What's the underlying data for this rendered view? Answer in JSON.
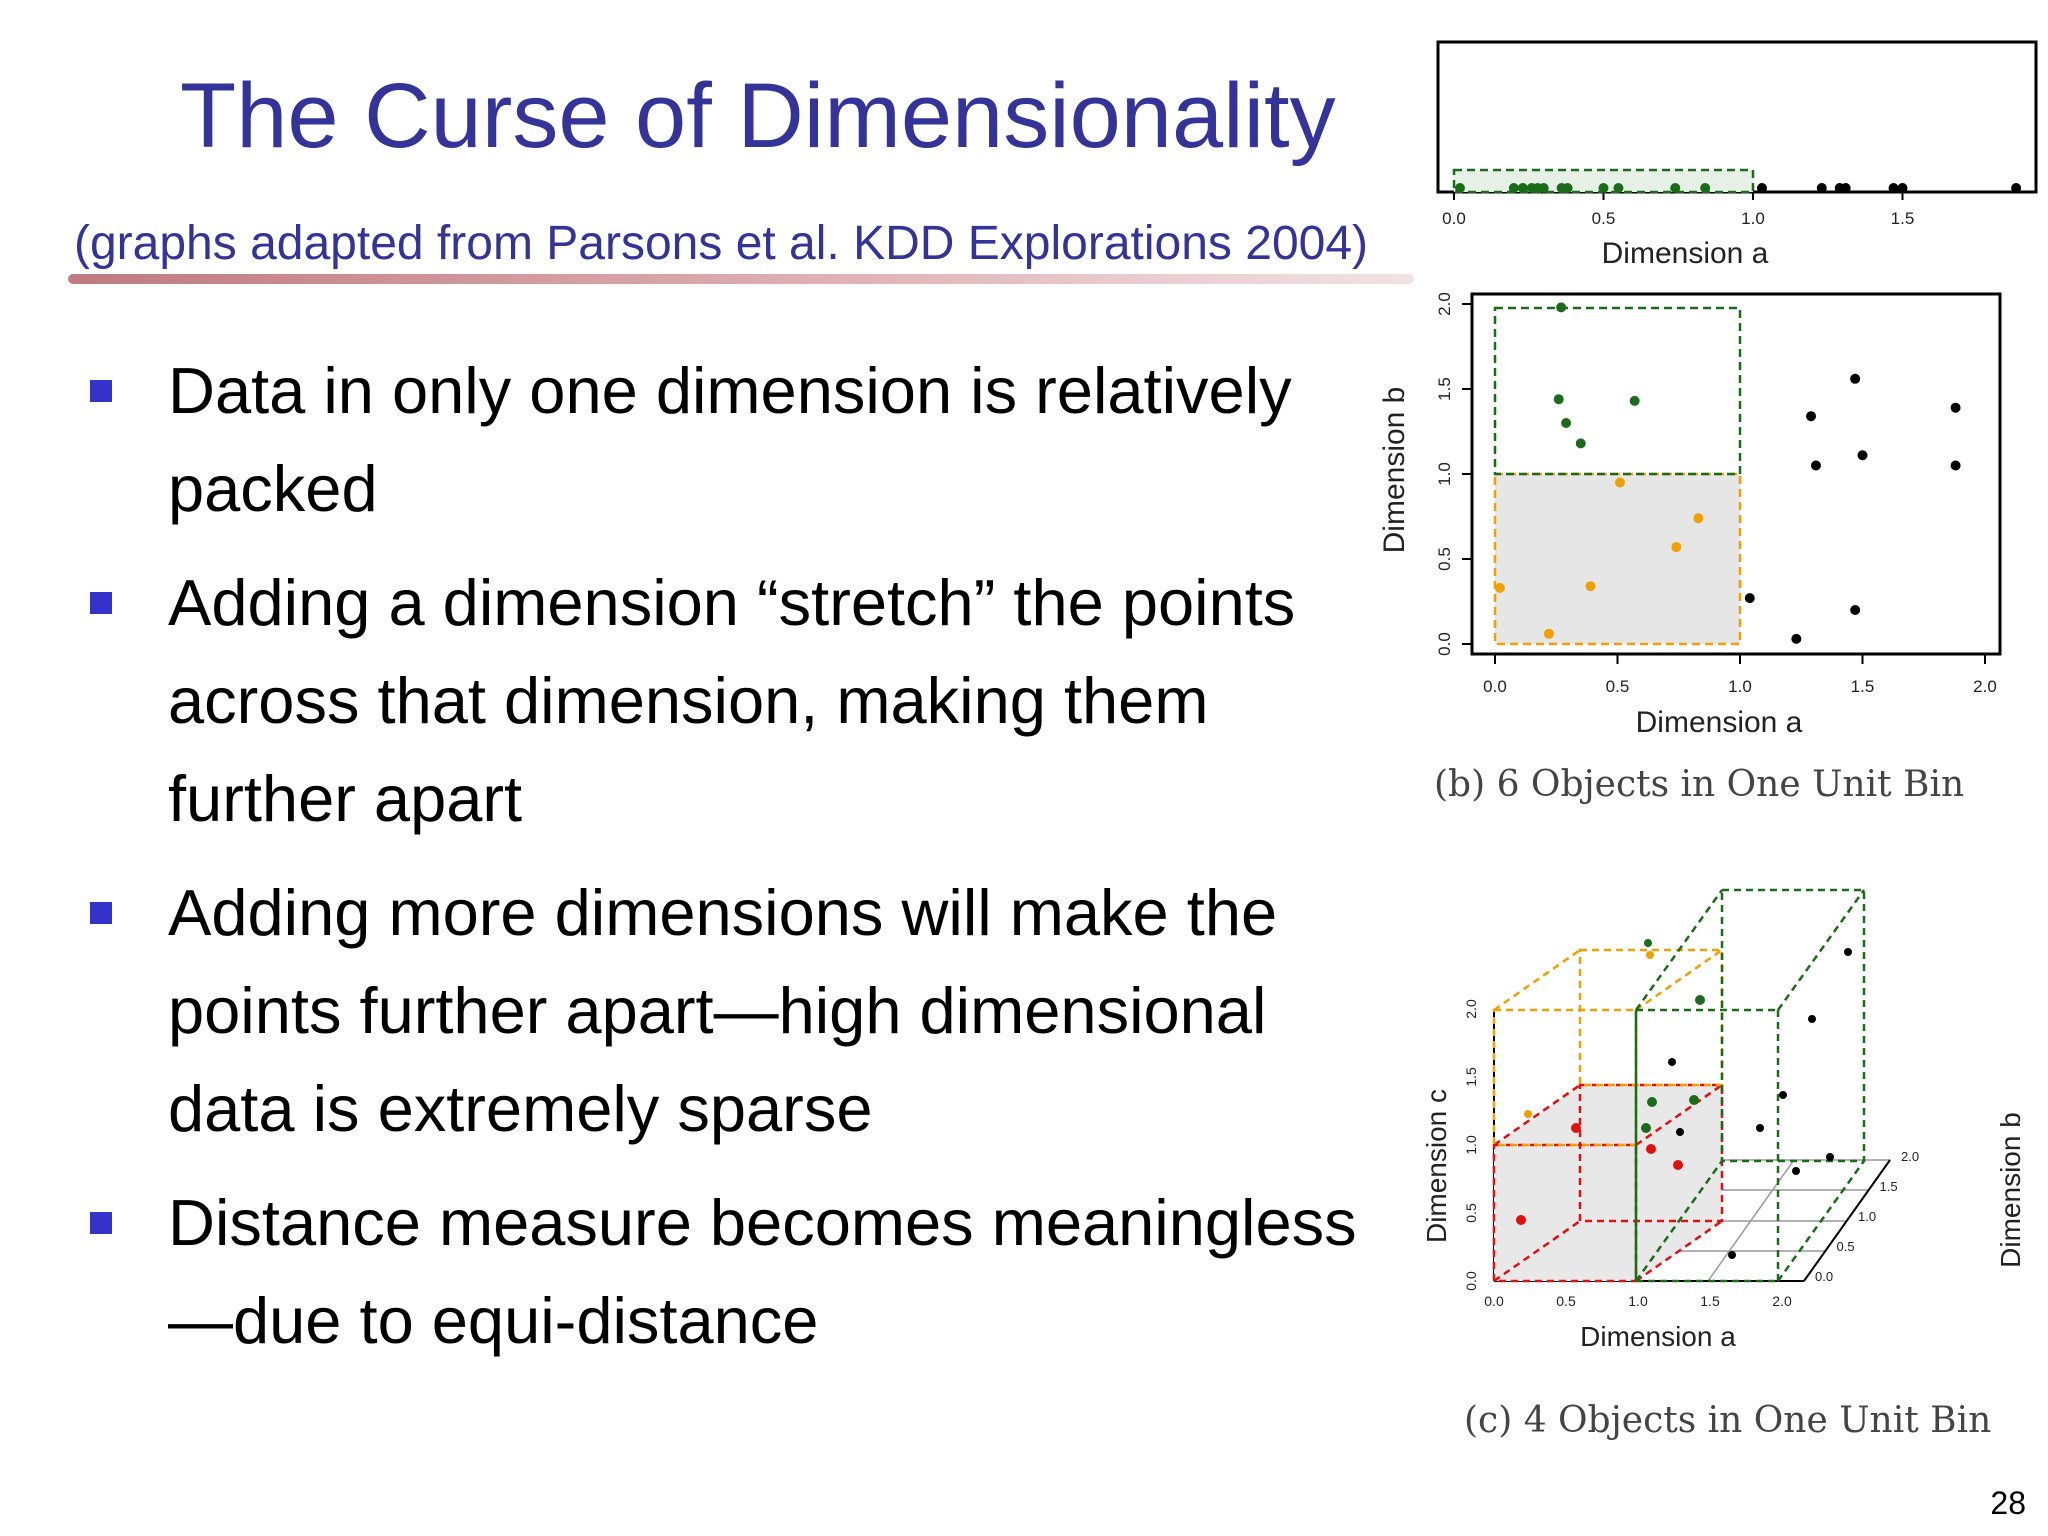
{
  "slide": {
    "title": "The Curse of Dimensionality",
    "subtitle": "(graphs adapted from Parsons et al. KDD Explorations 2004)",
    "page_number": "28"
  },
  "bullets": [
    {
      "text": "Data in only one dimension is relatively packed"
    },
    {
      "text": "Adding a dimension “stretch” the points across that dimension, making them further apart"
    },
    {
      "text": "Adding more dimensions will make the points further apart—high dimensional data is extremely sparse"
    },
    {
      "text": "Distance measure becomes meaningless—due to equi-distance"
    }
  ],
  "colors": {
    "title": "#333399",
    "bullet": "#3333cc",
    "green": "#1a6b1a",
    "orange": "#f0a000",
    "red": "#e01010",
    "black": "#000000"
  },
  "figures": {
    "a": {
      "xlabel": "Dimension a",
      "ticks": [
        "0.0",
        "0.5",
        "1.0",
        "1.5"
      ],
      "points_green": [
        0.02,
        0.2,
        0.23,
        0.26,
        0.28,
        0.3,
        0.36,
        0.38,
        0.5,
        0.55,
        0.74,
        0.84
      ],
      "points_black": [
        1.03,
        1.23,
        1.29,
        1.31,
        1.47,
        1.5,
        1.88
      ]
    },
    "b": {
      "xlabel": "Dimension a",
      "ylabel": "Dimension b",
      "xticks": [
        "0.0",
        "0.5",
        "1.0",
        "1.5",
        "2.0"
      ],
      "yticks": [
        "0.0",
        "0.5",
        "1.0",
        "1.5",
        "2.0"
      ],
      "caption": "(b) 6 Objects in One Unit Bin",
      "points_green": [
        [
          0.27,
          1.98
        ],
        [
          0.26,
          1.44
        ],
        [
          0.29,
          1.3
        ],
        [
          0.35,
          1.18
        ],
        [
          0.57,
          1.43
        ]
      ],
      "points_orange": [
        [
          0.02,
          0.33
        ],
        [
          0.22,
          0.06
        ],
        [
          0.39,
          0.34
        ],
        [
          0.51,
          0.95
        ],
        [
          0.74,
          0.57
        ],
        [
          0.83,
          0.74
        ]
      ],
      "points_black": [
        [
          1.04,
          0.27
        ],
        [
          1.23,
          0.03
        ],
        [
          1.29,
          1.34
        ],
        [
          1.31,
          1.05
        ],
        [
          1.47,
          0.2
        ],
        [
          1.47,
          1.56
        ],
        [
          1.5,
          1.11
        ],
        [
          1.88,
          1.39
        ],
        [
          1.88,
          1.05
        ]
      ]
    },
    "c": {
      "xlabel": "Dimension a",
      "ylabel": "Dimension c",
      "zlabel": "Dimension b",
      "xticks": [
        "0.0",
        "0.5",
        "1.0",
        "1.5",
        "2.0"
      ],
      "yticks": [
        "0.0",
        "0.5",
        "1.0",
        "1.5",
        "2.0"
      ],
      "zticks": [
        "0.0",
        "0.5",
        "1.0",
        "1.5",
        "2.0"
      ],
      "caption": "(c) 4 Objects in One Unit Bin"
    }
  }
}
